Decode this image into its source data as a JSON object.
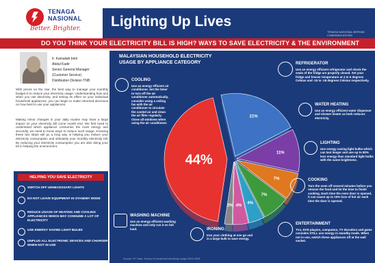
{
  "header": {
    "logo_line1": "TENAGA",
    "logo_line2": "NASIONAL",
    "logo_tagline": "Better. Brighter.",
    "title": "Lighting Up Lives",
    "small_credit": "TENAGA NASIONAL BERHAD COMMUNICATIONS"
  },
  "banner": "DO YOU THINK YOUR ELECTRICITY BILL IS HIGH? WAYS TO SAVE ELECTRICITY & THE ENVIRONMENT",
  "author": {
    "name1": "Ir. Kamaliah binti",
    "name2": "Abdul Kadir",
    "role1": "Senior General Manager",
    "role2": "(Customer Service)",
    "role3": "Distribution Division TNB"
  },
  "paragraphs": [
    "With prices on the rise, the best way to manage your monthly budget is to reduce your electricity usage. Understanding how and when you use electricity, and seeing its effect on your individual household appliances, you can begin to make informed decisions on how best to use your appliances.",
    "Making minor changes in your daily routine may have a large impact on your electricity bill come month end. We first need to understand which appliance consumes the most energy and secondly, we need to know ways to reduce such usage. Knowing these two steps will go a long way in helping you reduce your electricity consumption and ultimately your monthly electricity bill. By reducing your electricity consumption you are also doing your bit in helping the environment."
  ],
  "tips": {
    "heading": "HELPING YOU SAVE ELECTRICITY",
    "items": [
      "SWITCH OFF UNNECESSARY LIGHTS",
      "DO NOT LEAVE EQUIPMENT IN STANDBY MODE",
      "REDUCE USAGE OF HEATING AND COOLING APPLIANCES WHICH MAY CONSUME A LOT OF ELECTRICITY",
      "USE ENERGY SAVING LIGHT BULBS",
      "UNPLUG ALL ELECTRONIC DEVICES AND CHARGER WHEN NOT IN USE"
    ]
  },
  "main": {
    "title_line1": "MALAYSIAN HOUSEHOLD ELECTRICITY",
    "title_line2": "USAGE BY APPLIANCE CATEGORY",
    "source": "Source: ST Data, Survey of household electricity usage 2003-2006"
  },
  "categories": [
    {
      "name": "COOLING",
      "desc": "Use an energy efficient air conditioner. Set the timer to turn off the air conditioner automatically, consider using a ceiling fan with the air conditioner to circulate the cooled air and clean the air filter regularly. Close all windows when using the air conditioner."
    },
    {
      "name": "REFRIGERATOR",
      "desc": "Use an energy efficient refrigerator and check the seals of the fridge are properly closed. Set your fridge and freezer temperature at 4 to 5 degrees Celsius and -15 to -18 degrees Celsius respectively."
    },
    {
      "name": "WATER HEATING",
      "desc": "Use an energy efficient water dispenser and shower heater as both reduces electricity."
    },
    {
      "name": "LIGHTING",
      "desc": "Use energy saving light bulbs which can last longer and use up to 80% less energy than standard light bulbs with the same brightness."
    },
    {
      "name": "COOKING",
      "desc": "Turn the oven off several minutes before you remove the food and let the time to finish cooking. Each time the oven door is opened, it can cause up to 15% loss of hot air each time the door is opened."
    },
    {
      "name": "ENTERTAINMENT",
      "desc": "TVs, DVD players, computers, TV decoders and game consoles STILL use energy in standby mode. When not in use, switch these appliances off at the wall socket."
    },
    {
      "name": "WASHING MACHINE",
      "desc": "Use an energy efficient washing machine and only run it on full load."
    },
    {
      "name": "IRONING",
      "desc": "Iron your clothing at one go and in a large bulk to save energy."
    }
  ],
  "chart_data": {
    "type": "pie",
    "title": "MALAYSIAN HOUSEHOLD ELECTRICITY USAGE BY APPLIANCE CATEGORY",
    "slices": [
      {
        "label": "44%",
        "value": 44,
        "color": "#e8322f"
      },
      {
        "label": "21%",
        "value": 21,
        "color": "#3d72c4"
      },
      {
        "label": "11%",
        "value": 11,
        "color": "#7b3ea6"
      },
      {
        "label": "7%",
        "value": 7,
        "color": "#e0781f"
      },
      {
        "label": "7%",
        "value": 7,
        "color": "#3c9a3c"
      },
      {
        "label": "4%",
        "value": 4,
        "color": "#2e9fc9"
      },
      {
        "label": "4%",
        "value": 4,
        "color": "#d05aa0"
      },
      {
        "label": "2%",
        "value": 2,
        "color": "#888888"
      }
    ]
  }
}
